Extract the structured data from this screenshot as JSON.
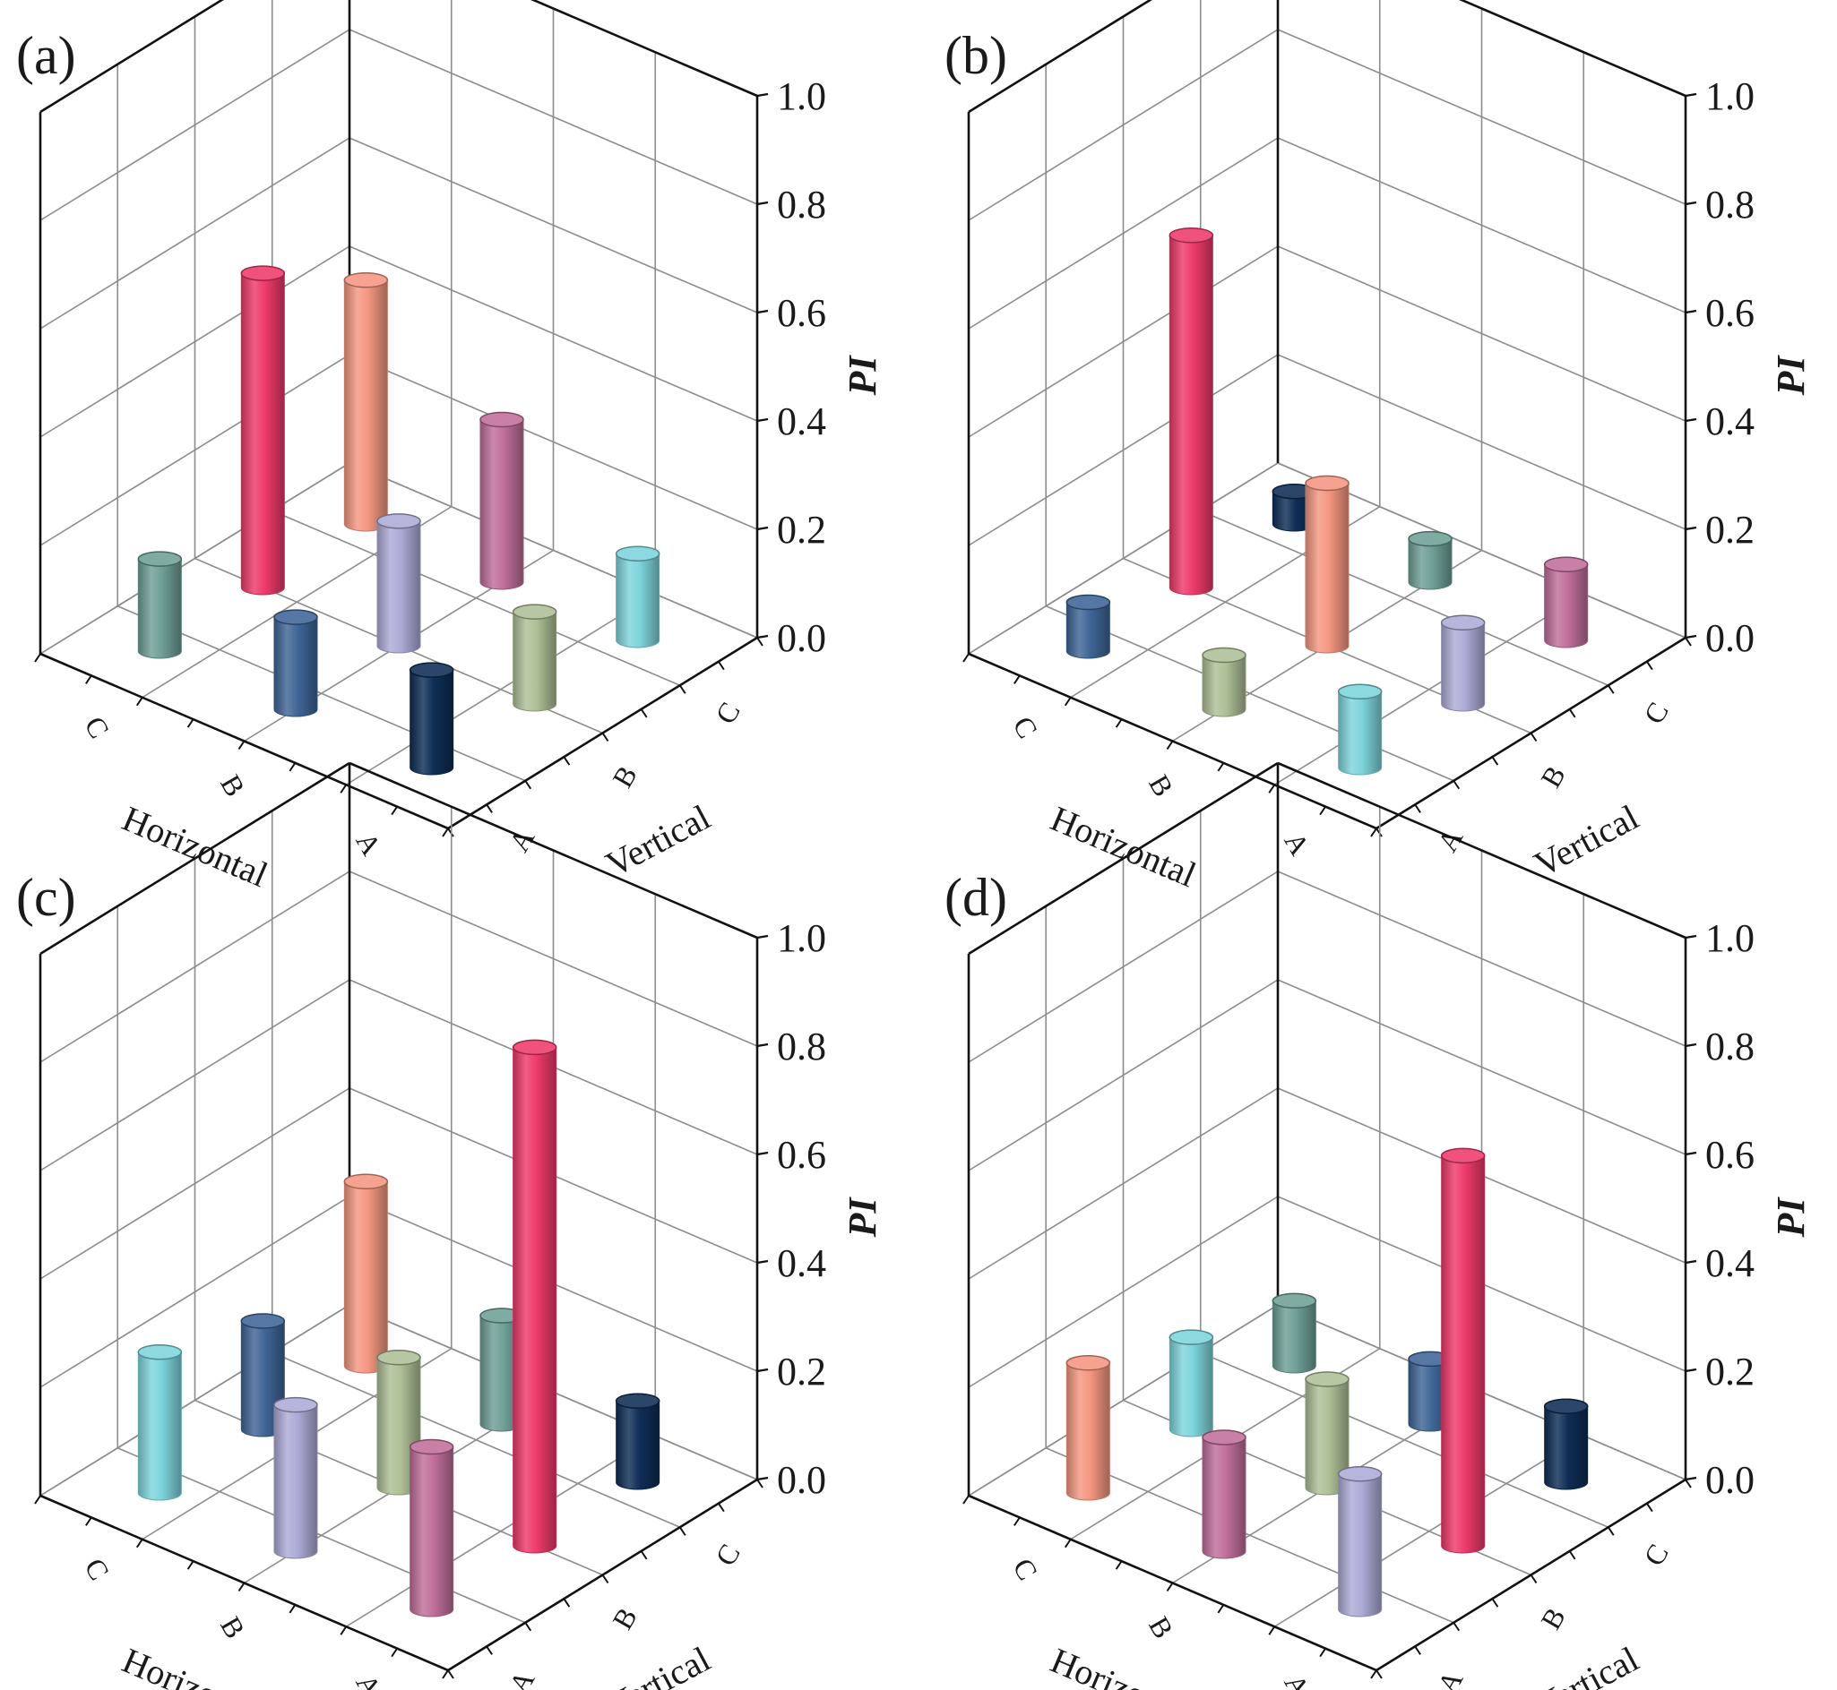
{
  "chart_data": [
    {
      "type": "bar3d",
      "panel": "(a)",
      "xlabel": "Horizontal",
      "ylabel": "Vertical",
      "zlabel": "PI",
      "categories": [
        "A",
        "B",
        "C"
      ],
      "zlim": [
        0,
        1.0
      ],
      "zticks": [
        "0.0",
        "0.2",
        "0.4",
        "0.6",
        "0.8",
        "1.0"
      ],
      "bars": [
        {
          "horizontal": "A",
          "vertical": "A",
          "value": 0.18,
          "color": "#0e2d55"
        },
        {
          "horizontal": "A",
          "vertical": "B",
          "value": 0.17,
          "color": "#aebf96"
        },
        {
          "horizontal": "A",
          "vertical": "C",
          "value": 0.16,
          "color": "#7ed4dc"
        },
        {
          "horizontal": "B",
          "vertical": "A",
          "value": 0.17,
          "color": "#3f6596"
        },
        {
          "horizontal": "B",
          "vertical": "B",
          "value": 0.23,
          "color": "#adabd6"
        },
        {
          "horizontal": "B",
          "vertical": "C",
          "value": 0.3,
          "color": "#c06f9a"
        },
        {
          "horizontal": "C",
          "vertical": "A",
          "value": 0.17,
          "color": "#6f9f97"
        },
        {
          "horizontal": "C",
          "vertical": "B",
          "value": 0.58,
          "color": "#ee3a6b"
        },
        {
          "horizontal": "C",
          "vertical": "C",
          "value": 0.45,
          "color": "#f49781"
        }
      ]
    },
    {
      "type": "bar3d",
      "panel": "(b)",
      "xlabel": "Horizontal",
      "ylabel": "Vertical",
      "zlabel": "PI",
      "categories": [
        "A",
        "B",
        "C"
      ],
      "zlim": [
        0,
        1.0
      ],
      "zticks": [
        "0.0",
        "0.2",
        "0.4",
        "0.6",
        "0.8",
        "1.0"
      ],
      "bars": [
        {
          "horizontal": "A",
          "vertical": "A",
          "value": 0.14,
          "color": "#7ed4dc"
        },
        {
          "horizontal": "A",
          "vertical": "B",
          "value": 0.15,
          "color": "#adabd6"
        },
        {
          "horizontal": "A",
          "vertical": "C",
          "value": 0.14,
          "color": "#c06f9a"
        },
        {
          "horizontal": "B",
          "vertical": "A",
          "value": 0.1,
          "color": "#aebf96"
        },
        {
          "horizontal": "B",
          "vertical": "B",
          "value": 0.3,
          "color": "#f49781"
        },
        {
          "horizontal": "B",
          "vertical": "C",
          "value": 0.08,
          "color": "#6f9f97"
        },
        {
          "horizontal": "C",
          "vertical": "A",
          "value": 0.09,
          "color": "#3f6596"
        },
        {
          "horizontal": "C",
          "vertical": "B",
          "value": 0.65,
          "color": "#ee3a6b"
        },
        {
          "horizontal": "C",
          "vertical": "C",
          "value": 0.06,
          "color": "#0e2d55"
        }
      ]
    },
    {
      "type": "bar3d",
      "panel": "(c)",
      "xlabel": "Horizontal",
      "ylabel": "Vertical",
      "zlabel": "PI",
      "categories": [
        "A",
        "B",
        "C"
      ],
      "zlim": [
        0,
        1.0
      ],
      "zticks": [
        "0.0",
        "0.2",
        "0.4",
        "0.6",
        "0.8",
        "1.0"
      ],
      "bars": [
        {
          "horizontal": "A",
          "vertical": "A",
          "value": 0.3,
          "color": "#c06f9a"
        },
        {
          "horizontal": "A",
          "vertical": "B",
          "value": 0.92,
          "color": "#ee3a6b"
        },
        {
          "horizontal": "A",
          "vertical": "C",
          "value": 0.15,
          "color": "#0e2d55"
        },
        {
          "horizontal": "B",
          "vertical": "A",
          "value": 0.27,
          "color": "#adabd6"
        },
        {
          "horizontal": "B",
          "vertical": "B",
          "value": 0.24,
          "color": "#aebf96"
        },
        {
          "horizontal": "B",
          "vertical": "C",
          "value": 0.2,
          "color": "#6f9f97"
        },
        {
          "horizontal": "C",
          "vertical": "A",
          "value": 0.26,
          "color": "#7ed4dc"
        },
        {
          "horizontal": "C",
          "vertical": "B",
          "value": 0.2,
          "color": "#3f6596"
        },
        {
          "horizontal": "C",
          "vertical": "C",
          "value": 0.34,
          "color": "#f49781"
        }
      ]
    },
    {
      "type": "bar3d",
      "panel": "(d)",
      "xlabel": "Horizontal",
      "ylabel": "Vertical",
      "zlabel": "PI",
      "categories": [
        "A",
        "B",
        "C"
      ],
      "zlim": [
        0,
        1.0
      ],
      "zticks": [
        "0.0",
        "0.2",
        "0.4",
        "0.6",
        "0.8",
        "1.0"
      ],
      "bars": [
        {
          "horizontal": "A",
          "vertical": "A",
          "value": 0.25,
          "color": "#adabd6"
        },
        {
          "horizontal": "A",
          "vertical": "B",
          "value": 0.72,
          "color": "#ee3a6b"
        },
        {
          "horizontal": "A",
          "vertical": "C",
          "value": 0.14,
          "color": "#0e2d55"
        },
        {
          "horizontal": "B",
          "vertical": "A",
          "value": 0.21,
          "color": "#c06f9a"
        },
        {
          "horizontal": "B",
          "vertical": "B",
          "value": 0.2,
          "color": "#aebf96"
        },
        {
          "horizontal": "B",
          "vertical": "C",
          "value": 0.12,
          "color": "#3f6596"
        },
        {
          "horizontal": "C",
          "vertical": "A",
          "value": 0.24,
          "color": "#f49781"
        },
        {
          "horizontal": "C",
          "vertical": "B",
          "value": 0.17,
          "color": "#7ed4dc"
        },
        {
          "horizontal": "C",
          "vertical": "C",
          "value": 0.12,
          "color": "#6f9f97"
        }
      ]
    }
  ]
}
